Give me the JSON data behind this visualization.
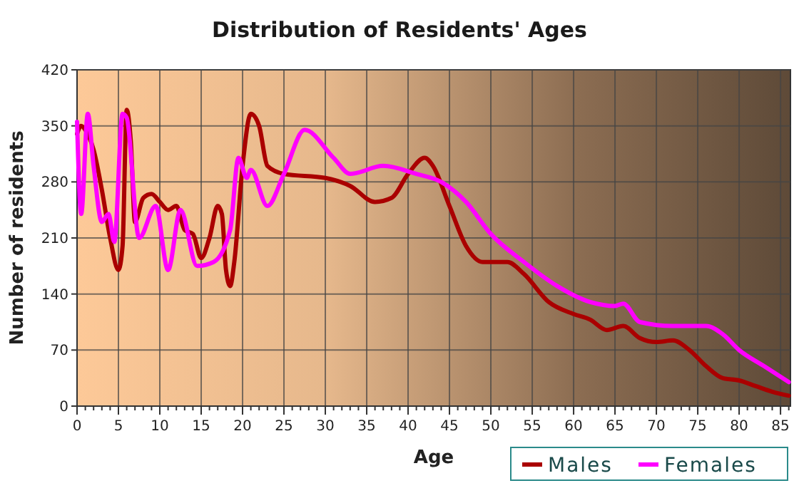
{
  "chart_data": {
    "type": "line",
    "title": "Distribution of Residents' Ages",
    "xlabel": "Age",
    "ylabel": "Number of residents",
    "xlim": [
      0,
      86.2
    ],
    "xticks": [
      0,
      5,
      10,
      15,
      20,
      25,
      30,
      35,
      40,
      45,
      50,
      55,
      60,
      65,
      70,
      75,
      80,
      85
    ],
    "ylim": [
      0,
      420
    ],
    "yticks": [
      0,
      70,
      140,
      210,
      280,
      350,
      420
    ],
    "grid": true,
    "legend": "bottom",
    "marker": "none",
    "line_style": "solid",
    "series": [
      {
        "name": "Males",
        "color": "#aa0000",
        "x": [
          0,
          0.5,
          1,
          2,
          3,
          4,
          5,
          5.5,
          6,
          6.5,
          7,
          8,
          9,
          10,
          11,
          12,
          13,
          14,
          15,
          16,
          17,
          17.5,
          18,
          18.5,
          19,
          20,
          21,
          22,
          23,
          25,
          30,
          33,
          36,
          38,
          40,
          42,
          43,
          45,
          47,
          49,
          52,
          54,
          57,
          60,
          62,
          64,
          66,
          68,
          70,
          72,
          74,
          76,
          78,
          80,
          82,
          84,
          86
        ],
        "values": [
          340,
          350,
          345,
          320,
          270,
          210,
          170,
          200,
          370,
          330,
          230,
          260,
          265,
          255,
          245,
          250,
          220,
          215,
          185,
          210,
          250,
          240,
          170,
          150,
          180,
          300,
          365,
          350,
          300,
          290,
          285,
          275,
          255,
          260,
          290,
          310,
          300,
          250,
          200,
          180,
          180,
          165,
          130,
          115,
          108,
          95,
          100,
          85,
          80,
          82,
          70,
          50,
          35,
          32,
          25,
          18,
          13
        ]
      },
      {
        "name": "Females",
        "color": "#ff00ff",
        "x": [
          0,
          0.5,
          1.3,
          2,
          3,
          3.8,
          4.5,
          5.5,
          6,
          7.5,
          9.5,
          11,
          12.5,
          14.5,
          16.5,
          18.5,
          19.5,
          20.5,
          21,
          23,
          25,
          27.5,
          31,
          33,
          37,
          41,
          44,
          47,
          50,
          54,
          58,
          62,
          65,
          66,
          68,
          72,
          76,
          78,
          80,
          83,
          86
        ],
        "values": [
          355,
          240,
          365,
          300,
          230,
          240,
          205,
          365,
          360,
          210,
          250,
          170,
          245,
          175,
          180,
          220,
          310,
          285,
          295,
          250,
          290,
          345,
          310,
          290,
          300,
          290,
          280,
          255,
          215,
          180,
          150,
          130,
          125,
          128,
          105,
          100,
          100,
          90,
          70,
          50,
          30
        ]
      }
    ]
  }
}
